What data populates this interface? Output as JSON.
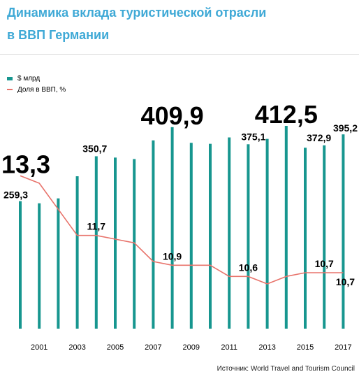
{
  "title": {
    "line1": "Динамика вклада туристической отрасли",
    "line2": "в ВВП Германии"
  },
  "legend": {
    "bars_label": "$ млрд",
    "line_label": "Доля в ВВП, %"
  },
  "source": "Источник: World Travel and Tourism Council",
  "colors": {
    "bar": "#17968f",
    "line": "#e8736b",
    "title": "#3fa9d6"
  },
  "chart_data": {
    "type": "bar",
    "categories": [
      "2000",
      "2001",
      "2002",
      "2003",
      "2004",
      "2005",
      "2006",
      "2007",
      "2008",
      "2009",
      "2010",
      "2011",
      "2012",
      "2013",
      "2014",
      "2015",
      "2016",
      "2017"
    ],
    "x_tick_labels": [
      "2001",
      "2003",
      "2005",
      "2007",
      "2009",
      "2011",
      "2013",
      "2015",
      "2017"
    ],
    "series": [
      {
        "name": "$ млрд",
        "type": "bar",
        "values": [
          259.3,
          255,
          265,
          310,
          350.7,
          348,
          345,
          383,
          409.9,
          378,
          376,
          389,
          375.1,
          386,
          412.5,
          368,
          372.9,
          395.2
        ]
      },
      {
        "name": "Доля в ВВП, %",
        "type": "line",
        "values": [
          13.3,
          13.1,
          12.4,
          11.7,
          11.7,
          11.6,
          11.5,
          11.0,
          10.9,
          10.9,
          10.9,
          10.6,
          10.6,
          10.4,
          10.6,
          10.7,
          10.7,
          10.7
        ]
      }
    ],
    "bar_labels": [
      {
        "index": 0,
        "text": "259,3",
        "size": "medium"
      },
      {
        "index": 4,
        "text": "350,7",
        "size": "medium"
      },
      {
        "index": 8,
        "text": "409,9",
        "size": "large"
      },
      {
        "index": 12,
        "text": "375,1",
        "size": "medium"
      },
      {
        "index": 14,
        "text": "412,5",
        "size": "large"
      },
      {
        "index": 16,
        "text": "372,9",
        "size": "medium"
      },
      {
        "index": 17,
        "text": "395,2",
        "size": "medium"
      }
    ],
    "line_labels": [
      {
        "index": 0,
        "text": "13,3",
        "size": "large"
      },
      {
        "index": 4,
        "text": "11,7",
        "size": "medium"
      },
      {
        "index": 8,
        "text": "10,9",
        "size": "medium"
      },
      {
        "index": 12,
        "text": "10,6",
        "size": "medium"
      },
      {
        "index": 16,
        "text": "10,7",
        "size": "medium"
      },
      {
        "index": 17,
        "text": "10,7",
        "size": "medium"
      }
    ],
    "bar_ylim": [
      0,
      430
    ],
    "line_ylim": [
      9.2,
      15.2
    ],
    "grid": false,
    "legend_position": "top-left"
  }
}
